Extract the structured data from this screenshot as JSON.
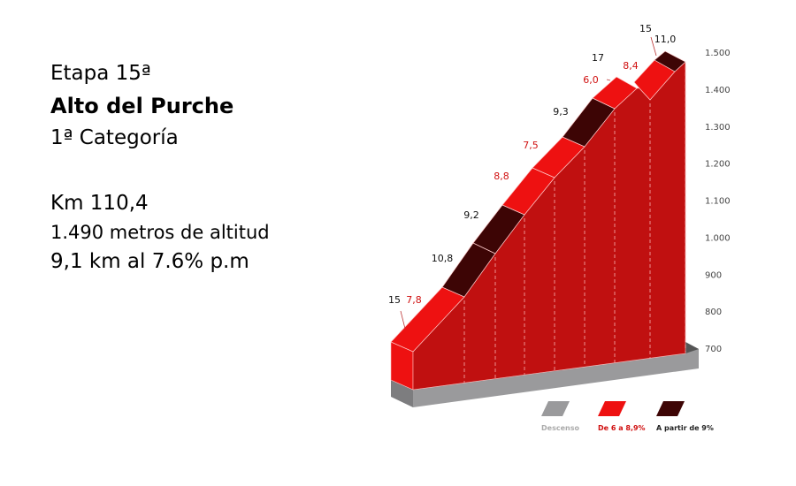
{
  "info": {
    "stage": "Etapa 15ª",
    "climb": "Alto del Purche",
    "category": "1ª Categoría",
    "km": "Km 110,4",
    "altitude": "1.490 metros de altitud",
    "summary": "9,1 km al 7.6% p.m"
  },
  "colors": {
    "descent": "#9a9a9c",
    "medium": "#ee1111",
    "hard": "#3d0505",
    "face": "#c01010"
  },
  "chart_data": {
    "type": "area",
    "title": "",
    "xlabel": "",
    "ylabel": "",
    "ylim": [
      700,
      1500
    ],
    "yticks": [
      "700",
      "800",
      "900",
      "1.000",
      "1.100",
      "1.200",
      "1.300",
      "1.400",
      "1.500"
    ],
    "segments": [
      {
        "label": "7,8",
        "gradient": 7.8,
        "category": "medium"
      },
      {
        "label": "10,8",
        "gradient": 10.8,
        "category": "hard"
      },
      {
        "label": "9,2",
        "gradient": 9.2,
        "category": "hard"
      },
      {
        "label": "8,8",
        "gradient": 8.8,
        "category": "medium"
      },
      {
        "label": "7,5",
        "gradient": 7.5,
        "category": "medium"
      },
      {
        "label": "9,3",
        "gradient": 9.3,
        "category": "hard"
      },
      {
        "label": "6,0",
        "gradient": 6.0,
        "category": "medium"
      },
      {
        "label": "8,4",
        "gradient": 8.4,
        "category": "medium"
      },
      {
        "label": "11,0",
        "gradient": 11.0,
        "category": "hard"
      }
    ],
    "max_gradient_labels": [
      "15",
      "17",
      "15"
    ],
    "legend": [
      {
        "label": "Descenso",
        "category": "descent"
      },
      {
        "label": "De 6 a 8,9%",
        "category": "medium"
      },
      {
        "label": "A partir de 9%",
        "category": "hard"
      }
    ],
    "legend_placement": "bottom-right"
  }
}
